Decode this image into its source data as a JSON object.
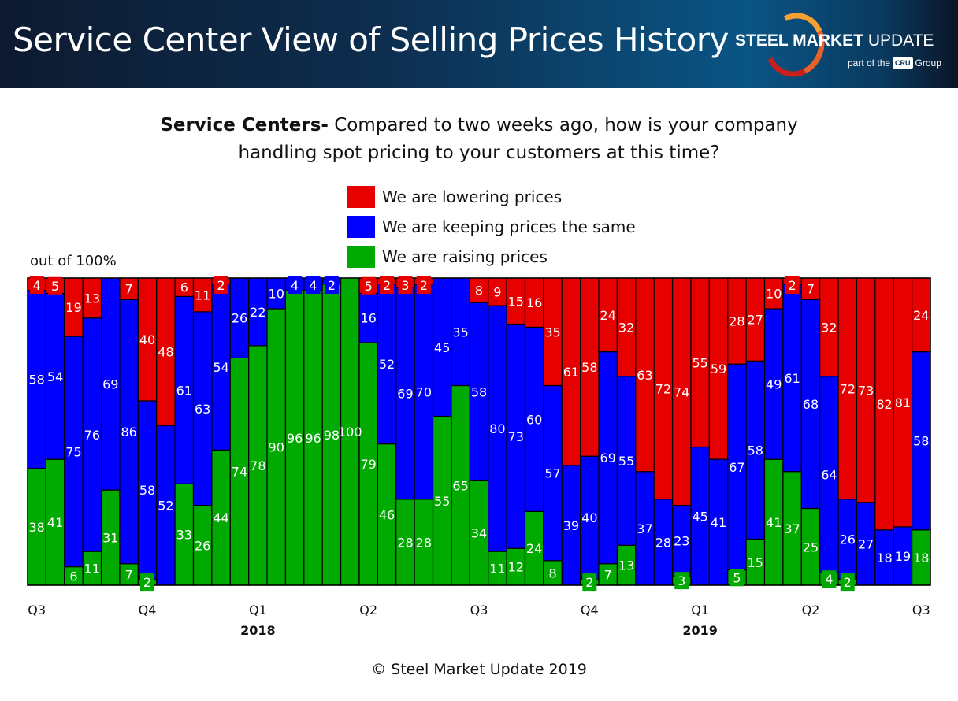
{
  "header": {
    "title": "Service Center View of Selling Prices History",
    "logo": {
      "brand_bold": "STEEL MARKET",
      "brand_light": "UPDATE",
      "sub_prefix": "part of the",
      "sub_mark": "CRU",
      "sub_suffix": "Group"
    }
  },
  "chart_data": {
    "type": "bar",
    "stacked": true,
    "title_bold": "Service Centers-",
    "title_line1": "Compared to two weeks ago, how is your company",
    "title_line2": "handling spot pricing to your customers at this time?",
    "ylabel": "out of 100%",
    "ylim": [
      0,
      100
    ],
    "legend_placement": "top-center",
    "x_tick_labels": [
      {
        "bar": 1,
        "label": "Q3"
      },
      {
        "bar": 7,
        "label": "Q4"
      },
      {
        "bar": 13,
        "label": "Q1"
      },
      {
        "bar": 19,
        "label": "Q2"
      },
      {
        "bar": 25,
        "label": "Q3"
      },
      {
        "bar": 31,
        "label": "Q4"
      },
      {
        "bar": 37,
        "label": "Q1"
      },
      {
        "bar": 43,
        "label": "Q2"
      },
      {
        "bar": 49,
        "label": "Q3"
      }
    ],
    "year_labels": [
      {
        "bar": 13,
        "label": "2018"
      },
      {
        "bar": 37,
        "label": "2019"
      }
    ],
    "series": [
      {
        "name": "We are lowering prices",
        "color": "#e60000",
        "values": [
          4,
          5,
          19,
          13,
          0,
          7,
          40,
          48,
          6,
          11,
          2,
          0,
          0,
          0,
          0,
          0,
          0,
          0,
          5,
          2,
          3,
          2,
          0,
          0,
          8,
          9,
          15,
          16,
          35,
          61,
          58,
          24,
          32,
          63,
          72,
          74,
          55,
          59,
          28,
          27,
          10,
          2,
          7,
          32,
          72,
          73,
          82,
          81,
          24
        ]
      },
      {
        "name": "We are keeping prices the same",
        "color": "#0000ff",
        "values": [
          58,
          54,
          75,
          76,
          69,
          86,
          58,
          52,
          61,
          63,
          54,
          26,
          22,
          10,
          4,
          4,
          2,
          0,
          16,
          52,
          69,
          70,
          45,
          35,
          58,
          80,
          73,
          60,
          57,
          39,
          40,
          69,
          55,
          37,
          28,
          23,
          45,
          41,
          67,
          58,
          49,
          61,
          68,
          64,
          26,
          27,
          18,
          19,
          58
        ]
      },
      {
        "name": "We are raising prices",
        "color": "#00aa00",
        "values": [
          38,
          41,
          6,
          11,
          31,
          7,
          2,
          0,
          33,
          26,
          44,
          74,
          78,
          90,
          96,
          96,
          98,
          100,
          79,
          46,
          28,
          28,
          55,
          65,
          34,
          11,
          12,
          24,
          8,
          0,
          2,
          7,
          13,
          0,
          0,
          3,
          0,
          0,
          5,
          15,
          41,
          37,
          25,
          4,
          2,
          0,
          0,
          0,
          18
        ]
      }
    ]
  },
  "footer": "© Steel Market Update 2019"
}
